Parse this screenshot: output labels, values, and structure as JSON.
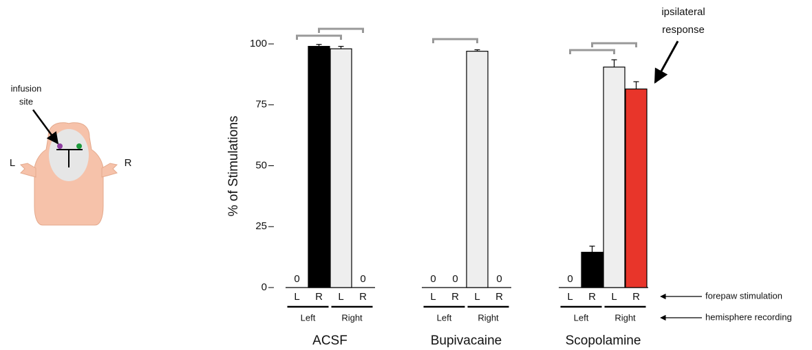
{
  "illustration": {
    "infusion_label": [
      "infusion",
      "site"
    ],
    "left": "L",
    "right": "R"
  },
  "annotation": [
    "ipsilateral",
    "response"
  ],
  "chart_data": {
    "type": "bar",
    "y_label": "% of Stimulations",
    "ylim": [
      0,
      100
    ],
    "yticks": [
      0,
      25,
      50,
      75,
      100
    ],
    "row_labels": [
      "forepaw stimulation",
      "hemisphere recording"
    ],
    "panels": [
      {
        "title": "ACSF",
        "categories": [
          "L",
          "R",
          "L",
          "R"
        ],
        "groups": [
          "Left",
          "Right"
        ],
        "values": [
          0,
          99,
          98,
          0
        ],
        "errors": [
          0,
          0.8,
          1,
          0
        ],
        "colors": [
          "#000000",
          "#000000",
          "#eeeeee",
          "#eeeeee"
        ]
      },
      {
        "title": "Bupivacaine",
        "categories": [
          "L",
          "R",
          "L",
          "R"
        ],
        "groups": [
          "Left",
          "Right"
        ],
        "values": [
          0,
          0,
          97,
          0
        ],
        "errors": [
          0,
          0,
          0.6,
          0
        ],
        "colors": [
          "#000000",
          "#000000",
          "#eeeeee",
          "#eeeeee"
        ]
      },
      {
        "title": "Scopolamine",
        "categories": [
          "L",
          "R",
          "L",
          "R"
        ],
        "groups": [
          "Left",
          "Right"
        ],
        "values": [
          0,
          14.5,
          90.5,
          81.5
        ],
        "errors": [
          0,
          2.5,
          3,
          3
        ],
        "colors": [
          "#000000",
          "#000000",
          "#eeeeee",
          "#e8352a"
        ]
      }
    ]
  }
}
